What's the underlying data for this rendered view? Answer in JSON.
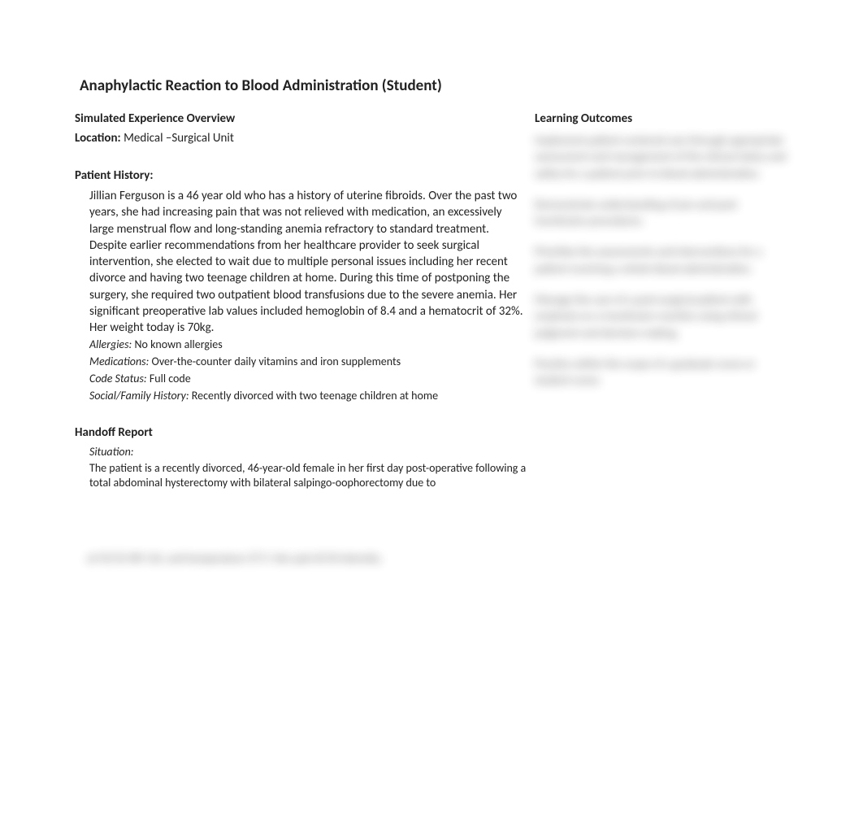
{
  "title": "Anaphylactic Reaction to Blood Administration (Student)",
  "overview": {
    "heading": "Simulated Experience Overview",
    "location_label": "Location:",
    "location_value": " Medical –Surgical Unit",
    "history_heading": "Patient History:",
    "history_intro": "Jillian Ferguson is a 46 year old who has a history of uterine fibroids.  ",
    "history_body": "Over the past two years, she had increasing pain that was not relieved with medication, an excessively large menstrual flow and long-standing anemia refractory to standard treatment. Despite earlier recommendations from her healthcare provider to seek surgical intervention, she elected to wait due to multiple personal issues including her recent divorce and having two teenage children at home. During this time of postponing the surgery, she required two outpatient blood transfusions due to the severe anemia. Her significant preoperative lab values included hemoglobin of 8.4 and a hematocrit of 32%.  Her weight today is 70kg.",
    "allergies_label": "Allergies:",
    "allergies_value": " No known allergies",
    "medications_label": "Medications:",
    "medications_value": " Over-the-counter daily vitamins and iron supplements",
    "code_label": "Code Status:",
    "code_value": " Full code",
    "social_label": "Social/Family History:",
    "social_value": " Recently divorced with two teenage children at home"
  },
  "handoff": {
    "heading": "Handoff Report",
    "situation_label": "Situation:",
    "situation_text": "The patient is a recently divorced, 46-year-old female in her first day post-operative following a total abdominal hysterectomy with bilateral salpingo-oophorectomy due to"
  },
  "outcomes": {
    "heading": "Learning Outcomes",
    "blur1": "Implement patient centered care through appropriate assessment and management of the clinical status and safety for a patient prior to blood administration.",
    "blur2": "Demonstrate understanding of pre and post transfusion procedures.",
    "blur3": "Prioritize the assessments and interventions for a patient receiving a whole blood administration.",
    "blur4": "Manage the care of a post-surgical patient with emphasis on a transfusion reaction using clinical judgment and decision making.",
    "blur5": "Practice within the scope of a graduate nurse or student nurse."
  },
  "bottom_blur": "at 92/52 HR 116, and temperature 37.9. Her pain 8/10 intensity."
}
